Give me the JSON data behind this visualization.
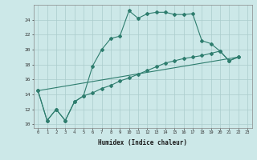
{
  "xlabel": "Humidex (Indice chaleur)",
  "background_color": "#cce8e8",
  "grid_color": "#aacccc",
  "line_color": "#2e7d6e",
  "curve1_x": [
    0,
    1,
    2,
    3,
    4,
    5,
    6,
    7,
    8,
    9,
    10,
    11,
    12,
    13,
    14,
    15,
    16,
    17,
    18,
    19,
    20,
    21,
    22
  ],
  "curve1_y": [
    14.5,
    10.5,
    12.0,
    10.5,
    13.0,
    13.8,
    17.8,
    20.0,
    21.5,
    21.8,
    25.2,
    24.2,
    24.8,
    25.0,
    25.0,
    24.7,
    24.7,
    24.8,
    21.2,
    20.8,
    19.8,
    18.5,
    19.0
  ],
  "curve2_x": [
    0,
    1,
    2,
    3,
    4,
    5,
    6,
    7,
    8,
    9,
    10,
    11,
    12,
    13,
    14,
    15,
    16,
    17,
    18,
    19,
    20,
    21,
    22
  ],
  "curve2_y": [
    14.5,
    10.5,
    12.0,
    10.5,
    13.0,
    13.8,
    14.2,
    14.8,
    15.2,
    15.8,
    16.2,
    16.7,
    17.2,
    17.7,
    18.2,
    18.5,
    18.8,
    19.0,
    19.2,
    19.5,
    19.8,
    18.5,
    19.0
  ],
  "curve3_x": [
    0,
    22
  ],
  "curve3_y": [
    14.5,
    19.0
  ],
  "xlim": [
    -0.5,
    23.5
  ],
  "ylim": [
    9.5,
    26.0
  ],
  "yticks": [
    10,
    12,
    14,
    16,
    18,
    20,
    22,
    24
  ],
  "xticks": [
    0,
    1,
    2,
    3,
    4,
    5,
    6,
    7,
    8,
    9,
    10,
    11,
    12,
    13,
    14,
    15,
    16,
    17,
    18,
    19,
    20,
    21,
    22,
    23
  ]
}
